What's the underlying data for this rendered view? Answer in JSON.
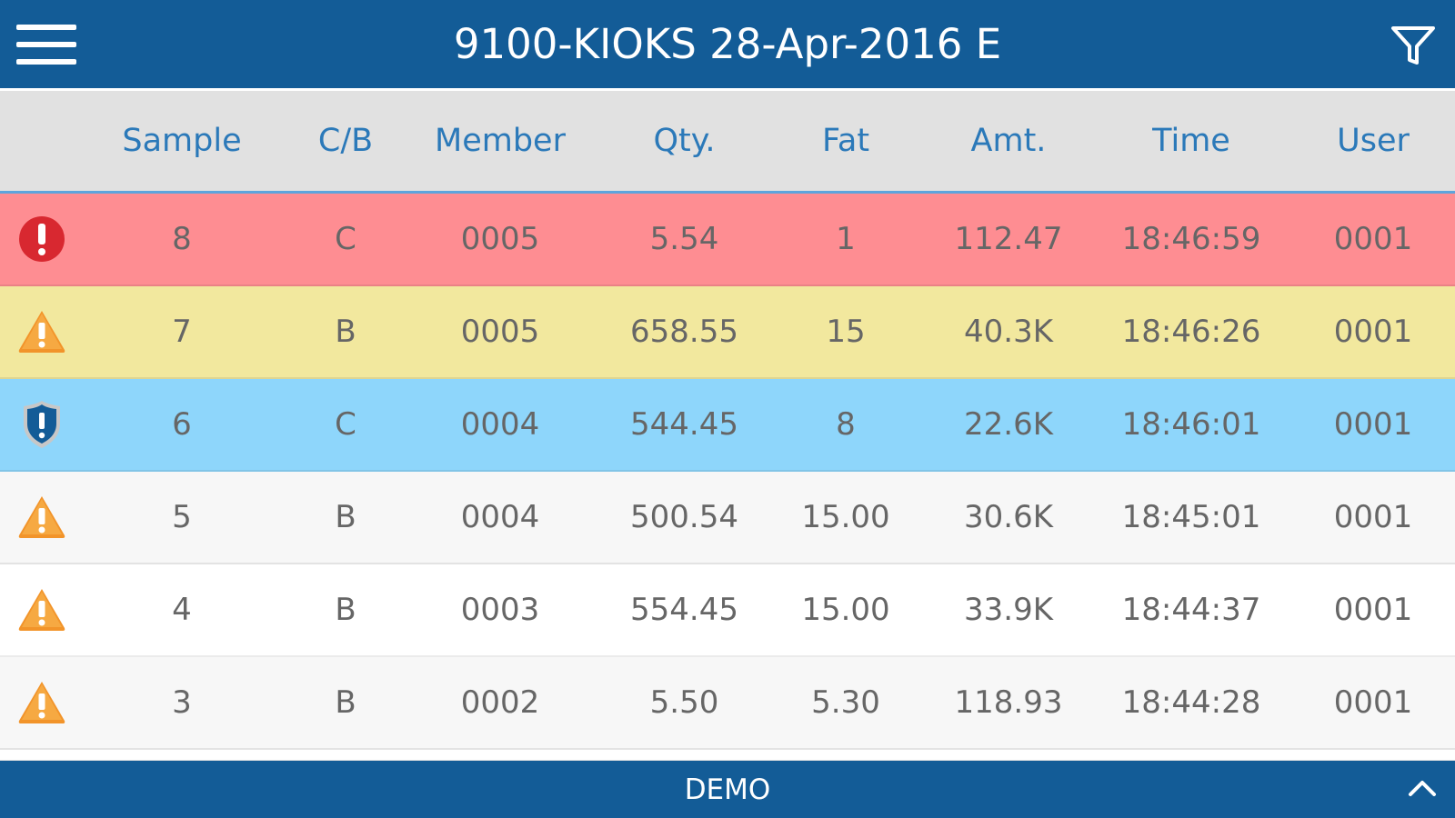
{
  "app": {
    "title": "9100-KIOKS 28-Apr-2016 E",
    "status": "DEMO"
  },
  "icons": {
    "menu": "menu-icon",
    "filter": "filter-icon",
    "collapse": "chevron-up-icon",
    "error": "error-icon",
    "warning": "warning-icon",
    "shield": "shield-icon"
  },
  "colors": {
    "topbar": "#135c97",
    "bottombar": "#135c97",
    "header_background": "#e1e1e1",
    "header_text": "#2b79b9",
    "error_row": "#fe8d92",
    "warning_row": "#f2e89e",
    "shield_row": "#8ed6fb",
    "striped_row_light": "#f7f7f7",
    "striped_row_white": "#ffffff",
    "error_icon": "#d82830",
    "warning_icon": "#f2942a",
    "shield_icon": "#135c97"
  },
  "table": {
    "columns": {
      "sample": "Sample",
      "cb": "C/B",
      "member": "Member",
      "qty": "Qty.",
      "fat": "Fat",
      "amt": "Amt.",
      "time": "Time",
      "user": "User"
    },
    "rows": [
      {
        "status": "error",
        "sample": "8",
        "cb": "C",
        "member": "0005",
        "qty": "5.54",
        "fat": "1",
        "amt": "112.47",
        "time": "18:46:59",
        "user": "0001"
      },
      {
        "status": "warning",
        "sample": "7",
        "cb": "B",
        "member": "0005",
        "qty": "658.55",
        "fat": "15",
        "amt": "40.3K",
        "time": "18:46:26",
        "user": "0001"
      },
      {
        "status": "shield",
        "sample": "6",
        "cb": "C",
        "member": "0004",
        "qty": "544.45",
        "fat": "8",
        "amt": "22.6K",
        "time": "18:46:01",
        "user": "0001"
      },
      {
        "status": "warning",
        "sample": "5",
        "cb": "B",
        "member": "0004",
        "qty": "500.54",
        "fat": "15.00",
        "amt": "30.6K",
        "time": "18:45:01",
        "user": "0001"
      },
      {
        "status": "warning",
        "sample": "4",
        "cb": "B",
        "member": "0003",
        "qty": "554.45",
        "fat": "15.00",
        "amt": "33.9K",
        "time": "18:44:37",
        "user": "0001"
      },
      {
        "status": "warning",
        "sample": "3",
        "cb": "B",
        "member": "0002",
        "qty": "5.50",
        "fat": "5.30",
        "amt": "118.93",
        "time": "18:44:28",
        "user": "0001"
      }
    ]
  }
}
